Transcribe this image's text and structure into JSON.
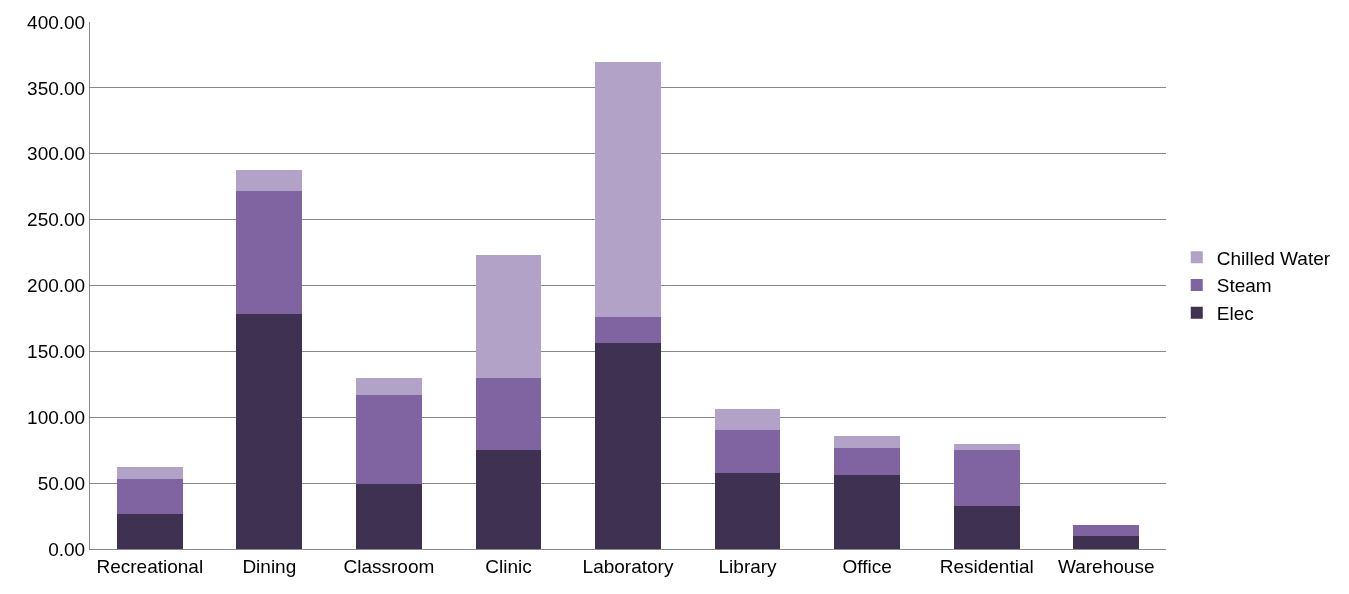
{
  "chart_data": {
    "type": "bar",
    "stacked": true,
    "categories": [
      "Recreational",
      "Dining",
      "Classroom",
      "Clinic",
      "Laboratory",
      "Library",
      "Office",
      "Residential",
      "Warehouse"
    ],
    "series": [
      {
        "name": "Elec",
        "color": "#3f3151",
        "values": [
          26.5,
          178.5,
          49,
          75.5,
          156,
          57.5,
          56,
          32.5,
          10
        ]
      },
      {
        "name": "Steam",
        "color": "#8064a2",
        "values": [
          27,
          93,
          68,
          54.5,
          20,
          32.5,
          20.5,
          43,
          8
        ]
      },
      {
        "name": "Chilled Water",
        "color": "#b2a2c7",
        "values": [
          8.5,
          16.5,
          13,
          93,
          194,
          16.5,
          9.5,
          4.5,
          0
        ]
      }
    ],
    "ylim": [
      0,
      400
    ],
    "yticks": [
      {
        "value": 0,
        "label": "0.00"
      },
      {
        "value": 50,
        "label": "50.00"
      },
      {
        "value": 100,
        "label": "100.00"
      },
      {
        "value": 150,
        "label": "150.00"
      },
      {
        "value": 200,
        "label": "200.00"
      },
      {
        "value": 250,
        "label": "250.00"
      },
      {
        "value": 300,
        "label": "300.00"
      },
      {
        "value": 350,
        "label": "350.00"
      },
      {
        "value": 400,
        "label": "400.00"
      }
    ],
    "grid": "y",
    "legend": "right"
  }
}
